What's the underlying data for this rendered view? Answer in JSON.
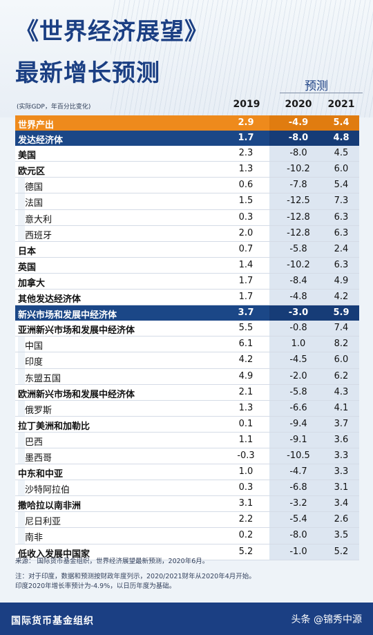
{
  "title_line1": "《世界经济展望》",
  "title_line2": "最新增长预测",
  "forecast_label": "预测",
  "unit_note": "(实际GDP，年百分比变化)",
  "years": [
    "2019",
    "2020",
    "2021"
  ],
  "rows": [
    {
      "name": "世界产出",
      "style": "world",
      "v": [
        "2.9",
        "-4.9",
        "5.4"
      ]
    },
    {
      "name": "发达经济体",
      "style": "blue",
      "v": [
        "1.7",
        "-8.0",
        "4.8"
      ]
    },
    {
      "name": "美国",
      "style": "bold",
      "v": [
        "2.3",
        "-8.0",
        "4.5"
      ]
    },
    {
      "name": "欧元区",
      "style": "bold",
      "v": [
        "1.3",
        "-10.2",
        "6.0"
      ]
    },
    {
      "name": "德国",
      "style": "sub",
      "v": [
        "0.6",
        "-7.8",
        "5.4"
      ]
    },
    {
      "name": "法国",
      "style": "sub",
      "v": [
        "1.5",
        "-12.5",
        "7.3"
      ]
    },
    {
      "name": "意大利",
      "style": "sub",
      "v": [
        "0.3",
        "-12.8",
        "6.3"
      ]
    },
    {
      "name": "西班牙",
      "style": "sub",
      "v": [
        "2.0",
        "-12.8",
        "6.3"
      ]
    },
    {
      "name": "日本",
      "style": "bold",
      "v": [
        "0.7",
        "-5.8",
        "2.4"
      ]
    },
    {
      "name": "英国",
      "style": "bold",
      "v": [
        "1.4",
        "-10.2",
        "6.3"
      ]
    },
    {
      "name": "加拿大",
      "style": "bold",
      "v": [
        "1.7",
        "-8.4",
        "4.9"
      ]
    },
    {
      "name": "其他发达经济体",
      "style": "bold",
      "v": [
        "1.7",
        "-4.8",
        "4.2"
      ]
    },
    {
      "name": "新兴市场和发展中经济体",
      "style": "blue",
      "v": [
        "3.7",
        "-3.0",
        "5.9"
      ]
    },
    {
      "name": "亚洲新兴市场和发展中经济体",
      "style": "bold",
      "v": [
        "5.5",
        "-0.8",
        "7.4"
      ]
    },
    {
      "name": "中国",
      "style": "sub",
      "v": [
        "6.1",
        "1.0",
        "8.2"
      ]
    },
    {
      "name": "印度",
      "style": "sub",
      "v": [
        "4.2",
        "-4.5",
        "6.0"
      ]
    },
    {
      "name": "东盟五国",
      "style": "sub",
      "v": [
        "4.9",
        "-2.0",
        "6.2"
      ]
    },
    {
      "name": "欧洲新兴市场和发展中经济体",
      "style": "bold",
      "v": [
        "2.1",
        "-5.8",
        "4.3"
      ]
    },
    {
      "name": "俄罗斯",
      "style": "sub",
      "v": [
        "1.3",
        "-6.6",
        "4.1"
      ]
    },
    {
      "name": "拉丁美洲和加勒比",
      "style": "bold",
      "v": [
        "0.1",
        "-9.4",
        "3.7"
      ]
    },
    {
      "name": "巴西",
      "style": "sub",
      "v": [
        "1.1",
        "-9.1",
        "3.6"
      ]
    },
    {
      "name": "墨西哥",
      "style": "sub",
      "v": [
        "-0.3",
        "-10.5",
        "3.3"
      ]
    },
    {
      "name": "中东和中亚",
      "style": "bold",
      "v": [
        "1.0",
        "-4.7",
        "3.3"
      ]
    },
    {
      "name": "沙特阿拉伯",
      "style": "sub",
      "v": [
        "0.3",
        "-6.8",
        "3.1"
      ]
    },
    {
      "name": "撒哈拉以南非洲",
      "style": "bold",
      "v": [
        "3.1",
        "-3.2",
        "3.4"
      ]
    },
    {
      "name": "尼日利亚",
      "style": "sub",
      "v": [
        "2.2",
        "-5.4",
        "2.6"
      ]
    },
    {
      "name": "南非",
      "style": "sub",
      "v": [
        "0.2",
        "-8.0",
        "3.5"
      ]
    },
    {
      "name": "低收入发展中国家",
      "style": "bold",
      "v": [
        "5.2",
        "-1.0",
        "5.2"
      ]
    }
  ],
  "notes": {
    "source": "来源：   国际货币基金组织，世界经济展望最新预测，2020年6月。",
    "note1": "注：对于印度，数据和预测按财政年度列示，2020/2021财年从2020年4月开始。",
    "note2": "印度2020年增长率预计为-4.9%，以日历年度为基础。"
  },
  "footer": {
    "org": "国际货币基金组织",
    "brand": "头条 @锦秀中源"
  }
}
